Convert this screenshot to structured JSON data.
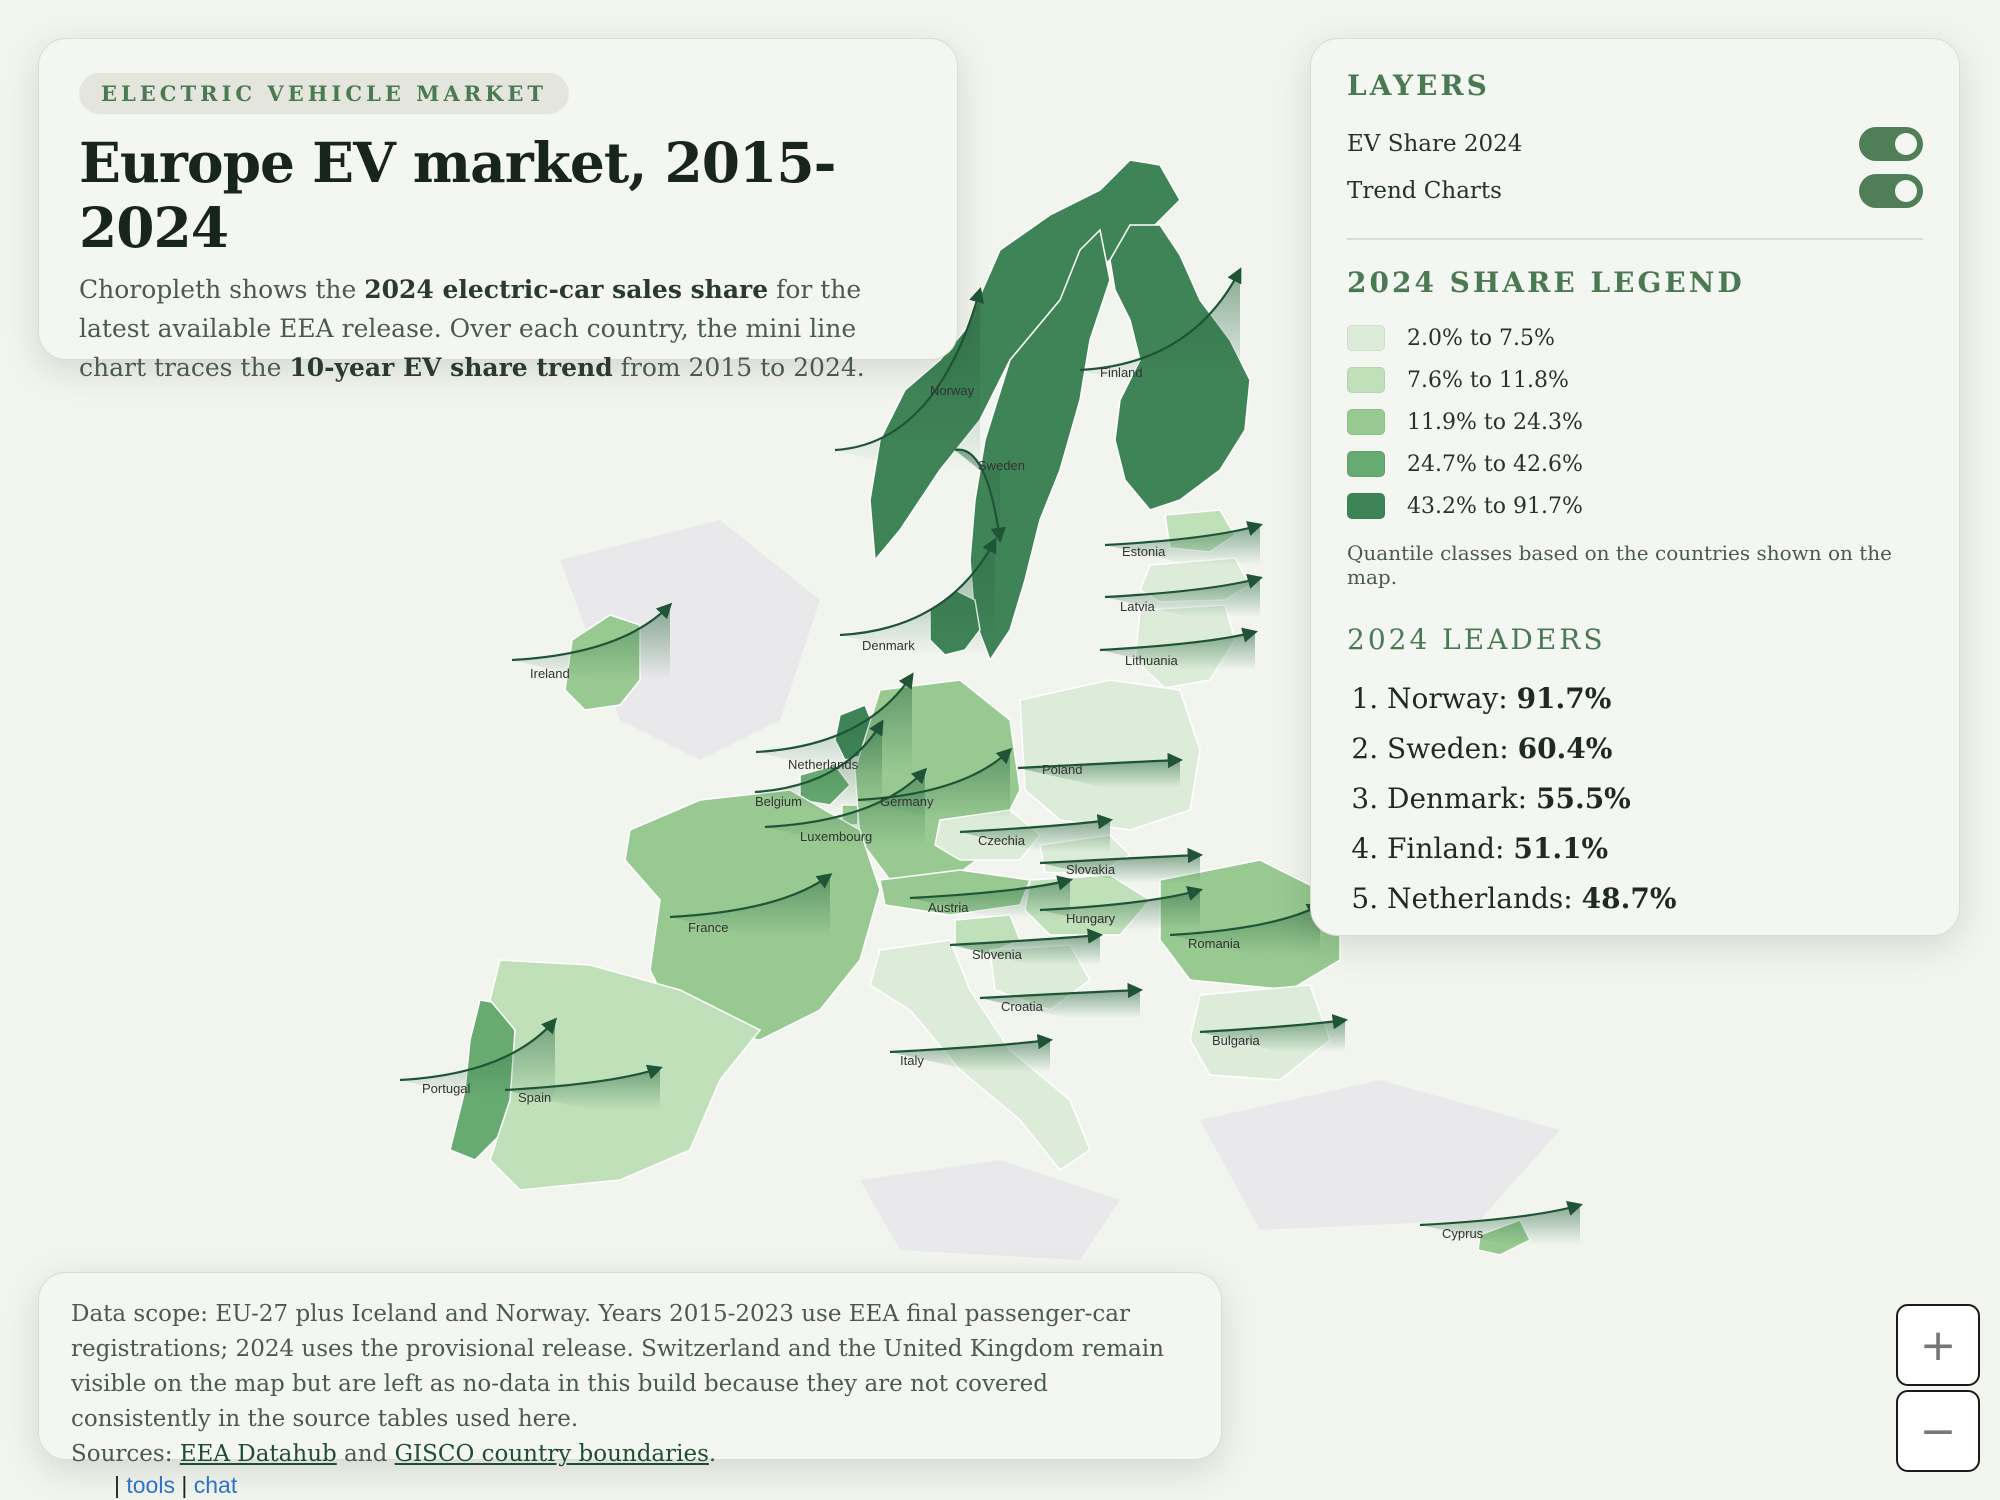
{
  "title_panel": {
    "kicker": "ELECTRIC VEHICLE MARKET",
    "title": "Europe EV market, 2015-2024",
    "desc_1": "Choropleth shows the ",
    "desc_b1": "2024 electric-car sales share",
    "desc_2": " for the latest available EEA release. Over each country, the mini line chart traces the ",
    "desc_b2": "10-year EV share trend",
    "desc_3": " from 2015 to 2024."
  },
  "layers": {
    "title": "LAYERS",
    "items": [
      {
        "label": "EV Share 2024",
        "on": true
      },
      {
        "label": "Trend Charts",
        "on": true
      }
    ]
  },
  "legend": {
    "title": "2024 SHARE LEGEND",
    "items": [
      {
        "label": "2.0% to 7.5%",
        "color": "#dcecd8"
      },
      {
        "label": "7.6% to 11.8%",
        "color": "#c0e0b9"
      },
      {
        "label": "11.9% to 24.3%",
        "color": "#98c991"
      },
      {
        "label": "24.7% to 42.6%",
        "color": "#68ab71"
      },
      {
        "label": "43.2% to 91.7%",
        "color": "#3f8457"
      }
    ],
    "note": "Quantile classes based on the countries shown on the map."
  },
  "leaders": {
    "title": "2024 LEADERS",
    "items": [
      {
        "name": "Norway:",
        "value": "91.7%"
      },
      {
        "name": "Sweden:",
        "value": "60.4%"
      },
      {
        "name": "Denmark:",
        "value": "55.5%"
      },
      {
        "name": "Finland:",
        "value": "51.1%"
      },
      {
        "name": "Netherlands:",
        "value": "48.7%"
      }
    ]
  },
  "footer": {
    "text": "Data scope: EU-27 plus Iceland and Norway. Years 2015-2023 use EEA final passenger-car registrations; 2024 uses the provisional release. Switzerland and the United Kingdom remain visible on the map but are left as no-data in this build because they are not covered consistently in the source tables used here.",
    "sources_prefix": "Sources: ",
    "link1": "EEA Datahub",
    "and": " and ",
    "link2": "GISCO country boundaries",
    "period": "."
  },
  "zoom": {
    "in": "+",
    "out": "−"
  },
  "links": {
    "sep1": "| ",
    "tools": "tools",
    "sep2": " | ",
    "chat": "chat"
  },
  "map": {
    "countries": [
      {
        "name": "Norway",
        "class": 4
      },
      {
        "name": "Sweden",
        "class": 4
      },
      {
        "name": "Finland",
        "class": 4
      },
      {
        "name": "Denmark",
        "class": 4
      },
      {
        "name": "Estonia",
        "class": 1
      },
      {
        "name": "Latvia",
        "class": 0
      },
      {
        "name": "Lithuania",
        "class": 0
      },
      {
        "name": "Ireland",
        "class": 2
      },
      {
        "name": "Netherlands",
        "class": 4
      },
      {
        "name": "Belgium",
        "class": 3
      },
      {
        "name": "Luxembourg",
        "class": 2
      },
      {
        "name": "Germany",
        "class": 2
      },
      {
        "name": "Poland",
        "class": 0
      },
      {
        "name": "Czechia",
        "class": 0
      },
      {
        "name": "Slovakia",
        "class": 0
      },
      {
        "name": "France",
        "class": 2
      },
      {
        "name": "Austria",
        "class": 2
      },
      {
        "name": "Hungary",
        "class": 1
      },
      {
        "name": "Romania",
        "class": 2
      },
      {
        "name": "Slovenia",
        "class": 1
      },
      {
        "name": "Croatia",
        "class": 0
      },
      {
        "name": "Bulgaria",
        "class": 0
      },
      {
        "name": "Italy",
        "class": 0
      },
      {
        "name": "Portugal",
        "class": 3
      },
      {
        "name": "Spain",
        "class": 1
      },
      {
        "name": "Cyprus",
        "class": 2
      }
    ]
  }
}
